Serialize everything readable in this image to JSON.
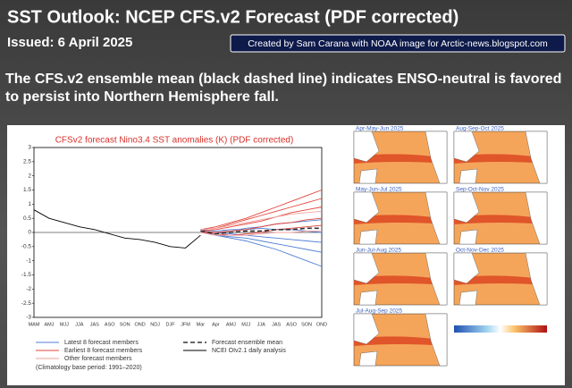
{
  "header": {
    "title": "SST Outlook: NCEP CFS.v2 Forecast (PDF corrected)",
    "issued": "Issued: 6 April 2025",
    "credit": "Created by Sam Carana with NOAA image for Arctic-news.blogspot.com"
  },
  "caption": "The CFS.v2 ensemble mean (black dashed line) indicates ENSO-neutral is favored to persist into Northern Hemisphere fall.",
  "chart_data": {
    "type": "line",
    "title": "CFSv2 forecast Nino3.4 SST anomalies (K) (PDF corrected)",
    "categories": [
      "MAM",
      "AMJ",
      "MJJ",
      "JJA",
      "JAS",
      "ASO",
      "SON",
      "OND",
      "NDJ",
      "DJF",
      "JFM",
      "Mar",
      "Apr",
      "AMJ",
      "MJJ",
      "JJA",
      "JAS",
      "ASO",
      "SON",
      "OND"
    ],
    "ylim": [
      -3,
      3
    ],
    "yticks": [
      3,
      2.5,
      2,
      1.5,
      1,
      0.5,
      0,
      -0.5,
      -1,
      -1.5,
      -2,
      -2.5,
      -3
    ],
    "series": [
      {
        "name": "Latest 8 forecast members",
        "color": "#4f7fd6",
        "members": [
          [
            null,
            null,
            null,
            null,
            null,
            null,
            null,
            null,
            null,
            null,
            null,
            0.05,
            -0.1,
            -0.2,
            -0.3,
            -0.45,
            -0.6,
            -0.8,
            -1.0,
            -1.2
          ],
          [
            null,
            null,
            null,
            null,
            null,
            null,
            null,
            null,
            null,
            null,
            null,
            0.0,
            -0.1,
            -0.15,
            -0.2,
            -0.3,
            -0.4,
            -0.5,
            -0.6,
            -0.7
          ],
          [
            null,
            null,
            null,
            null,
            null,
            null,
            null,
            null,
            null,
            null,
            null,
            0.05,
            0.0,
            -0.05,
            -0.1,
            -0.15,
            -0.2,
            -0.25,
            -0.3,
            -0.35
          ],
          [
            null,
            null,
            null,
            null,
            null,
            null,
            null,
            null,
            null,
            null,
            null,
            0.1,
            0.05,
            0.1,
            0.1,
            0.15,
            0.1,
            0.1,
            0.05,
            0.0
          ],
          [
            null,
            null,
            null,
            null,
            null,
            null,
            null,
            null,
            null,
            null,
            null,
            0.05,
            0.0,
            0.05,
            0.15,
            0.2,
            0.3,
            0.35,
            0.4,
            0.45
          ]
        ]
      },
      {
        "name": "Earliest 8 forecast members",
        "color": "#e0443a",
        "members": [
          [
            null,
            null,
            null,
            null,
            null,
            null,
            null,
            null,
            null,
            null,
            null,
            0.1,
            0.2,
            0.35,
            0.5,
            0.7,
            0.9,
            1.1,
            1.3,
            1.5
          ],
          [
            null,
            null,
            null,
            null,
            null,
            null,
            null,
            null,
            null,
            null,
            null,
            0.1,
            0.15,
            0.3,
            0.45,
            0.6,
            0.75,
            0.9,
            1.05,
            1.2
          ],
          [
            null,
            null,
            null,
            null,
            null,
            null,
            null,
            null,
            null,
            null,
            null,
            0.05,
            0.1,
            0.2,
            0.3,
            0.4,
            0.55,
            0.7,
            0.8,
            0.9
          ],
          [
            null,
            null,
            null,
            null,
            null,
            null,
            null,
            null,
            null,
            null,
            null,
            0.05,
            0.0,
            0.05,
            0.1,
            0.2,
            0.3,
            0.35,
            0.45,
            0.5
          ],
          [
            null,
            null,
            null,
            null,
            null,
            null,
            null,
            null,
            null,
            null,
            null,
            0.0,
            -0.05,
            -0.1,
            -0.05,
            0.0,
            0.1,
            0.15,
            0.2,
            0.25
          ]
        ]
      },
      {
        "name": "Other forecast members",
        "color": "#f2a0a0",
        "members": [
          [
            null,
            null,
            null,
            null,
            null,
            null,
            null,
            null,
            null,
            null,
            null,
            0.1,
            0.15,
            0.25,
            0.35,
            0.45,
            0.55,
            0.65,
            0.7,
            0.75
          ],
          [
            null,
            null,
            null,
            null,
            null,
            null,
            null,
            null,
            null,
            null,
            null,
            0.0,
            -0.1,
            -0.1,
            -0.1,
            -0.05,
            0.0,
            0.0,
            0.05,
            0.05
          ]
        ]
      },
      {
        "name": "Forecast ensemble mean",
        "color": "#333333",
        "dashed": true,
        "members": [
          [
            null,
            null,
            null,
            null,
            null,
            null,
            null,
            null,
            null,
            null,
            null,
            0.05,
            -0.05,
            0.0,
            0.05,
            0.05,
            0.1,
            0.1,
            0.15,
            0.15
          ]
        ]
      },
      {
        "name": "NCEI OIv2.1 daily analysis",
        "color": "#000000",
        "members": [
          [
            0.8,
            0.5,
            0.35,
            0.2,
            0.1,
            -0.05,
            -0.2,
            -0.25,
            -0.35,
            -0.5,
            -0.55,
            -0.1,
            null,
            null,
            null,
            null,
            null,
            null,
            null,
            null
          ]
        ]
      }
    ],
    "note": "(Climatology base period: 1991–2020)"
  },
  "maps": [
    "Apr-May-Jun 2025",
    "Aug-Sep-Oct 2025",
    "May-Jun-Jul 2025",
    "Sep-Oct-Nov 2025",
    "Jun-Jul-Aug 2025",
    "Oct-Nov-Dec 2025",
    "Jul-Aug-Sep 2025"
  ]
}
